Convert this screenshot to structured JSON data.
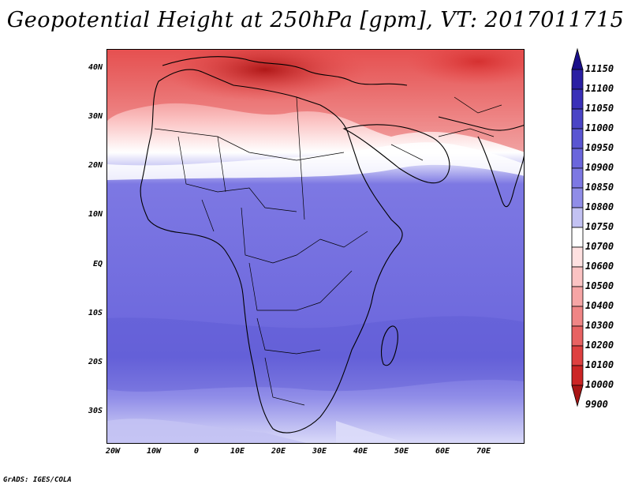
{
  "title": "Geopotential Height at 250hPa [gpm], VT: 2017011715",
  "credit": "GrADS: IGES/COLA",
  "map": {
    "lat_labels": [
      "40N",
      "30N",
      "20N",
      "10N",
      "EQ",
      "10S",
      "20S",
      "30S"
    ],
    "lon_labels": [
      "20W",
      "10W",
      "0",
      "10E",
      "20E",
      "30E",
      "40E",
      "50E",
      "60E",
      "70E"
    ]
  },
  "colorbar": {
    "levels": [
      "11150",
      "11100",
      "11050",
      "11000",
      "10950",
      "10900",
      "10850",
      "10800",
      "10750",
      "10700",
      "10600",
      "10500",
      "10400",
      "10300",
      "10200",
      "10100",
      "10000",
      "9900"
    ],
    "colors": [
      "#1a0f8a",
      "#2a1fa3",
      "#3a30b8",
      "#4a44c6",
      "#5a55d2",
      "#6b66dc",
      "#7d78e3",
      "#908de8",
      "#c3c2f3",
      "#ffffff",
      "#ffe1e1",
      "#fbc3c3",
      "#f6a5a5",
      "#f08585",
      "#e86262",
      "#de4040",
      "#cc2525",
      "#a81515"
    ]
  }
}
